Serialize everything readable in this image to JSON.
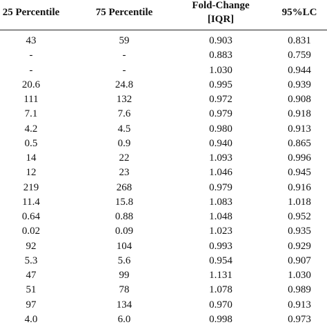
{
  "table": {
    "header": [
      "25 Percentile",
      "75 Percentile",
      "Fold-Change [IQR]",
      "95%LC"
    ],
    "rows": [
      [
        "43",
        "59",
        "0.903",
        "0.831"
      ],
      [
        "-",
        "-",
        "0.883",
        "0.759"
      ],
      [
        "-",
        "-",
        "1.030",
        "0.944"
      ],
      [
        "20.6",
        "24.8",
        "0.995",
        "0.939"
      ],
      [
        "111",
        "132",
        "0.972",
        "0.908"
      ],
      [
        "7.1",
        "7.6",
        "0.979",
        "0.918"
      ],
      [
        "4.2",
        "4.5",
        "0.980",
        "0.913"
      ],
      [
        "0.5",
        "0.9",
        "0.940",
        "0.865"
      ],
      [
        "14",
        "22",
        "1.093",
        "0.996"
      ],
      [
        "12",
        "23",
        "1.046",
        "0.945"
      ],
      [
        "219",
        "268",
        "0.979",
        "0.916"
      ],
      [
        "11.4",
        "15.8",
        "1.083",
        "1.018"
      ],
      [
        "0.64",
        "0.88",
        "1.048",
        "0.952"
      ],
      [
        "0.02",
        "0.09",
        "1.023",
        "0.935"
      ],
      [
        "92",
        "104",
        "0.993",
        "0.929"
      ],
      [
        "5.3",
        "5.6",
        "0.954",
        "0.907"
      ],
      [
        "47",
        "99",
        "1.131",
        "1.030"
      ],
      [
        "51",
        "78",
        "1.078",
        "0.989"
      ],
      [
        "97",
        "134",
        "0.970",
        "0.913"
      ],
      [
        "4.0",
        "6.0",
        "0.998",
        "0.973"
      ]
    ]
  }
}
